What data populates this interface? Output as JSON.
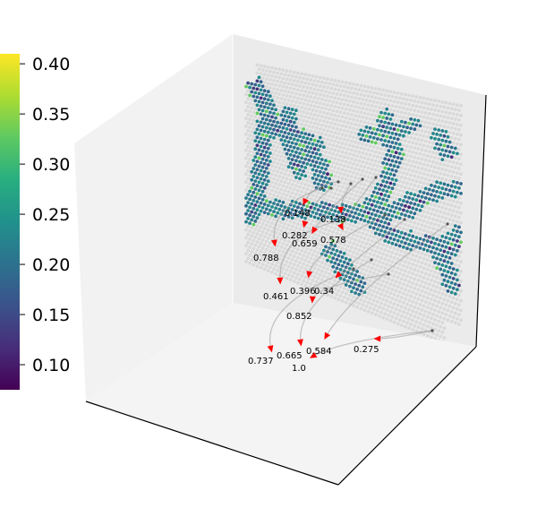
{
  "chart_data": {
    "type": "scatter",
    "title": "",
    "xlabel": "",
    "ylabel": "",
    "colormap": "viridis",
    "colorbar": {
      "range": [
        0.075,
        0.41
      ],
      "ticks": [
        "0.10",
        "0.15",
        "0.20",
        "0.25",
        "0.30",
        "0.35",
        "0.40"
      ],
      "tick_values": [
        0.1,
        0.15,
        0.2,
        0.25,
        0.3,
        0.35,
        0.4
      ]
    },
    "edge_labels": [
      "0.148",
      "0.138",
      "0.282",
      "0.659",
      "0.578",
      "0.788",
      "0.461",
      "0.396",
      "0.34",
      "0.852",
      "0.737",
      "0.665",
      "0.584",
      "1.0",
      "0.275"
    ],
    "colors": {
      "background_spot": "#d9d9d9",
      "arrow": "#ff0000",
      "edge_line": "#9a9a9a",
      "pane_left": "#f2f2f2",
      "pane_back": "#ebebeb",
      "pane_floor": "#f4f4f4"
    }
  }
}
